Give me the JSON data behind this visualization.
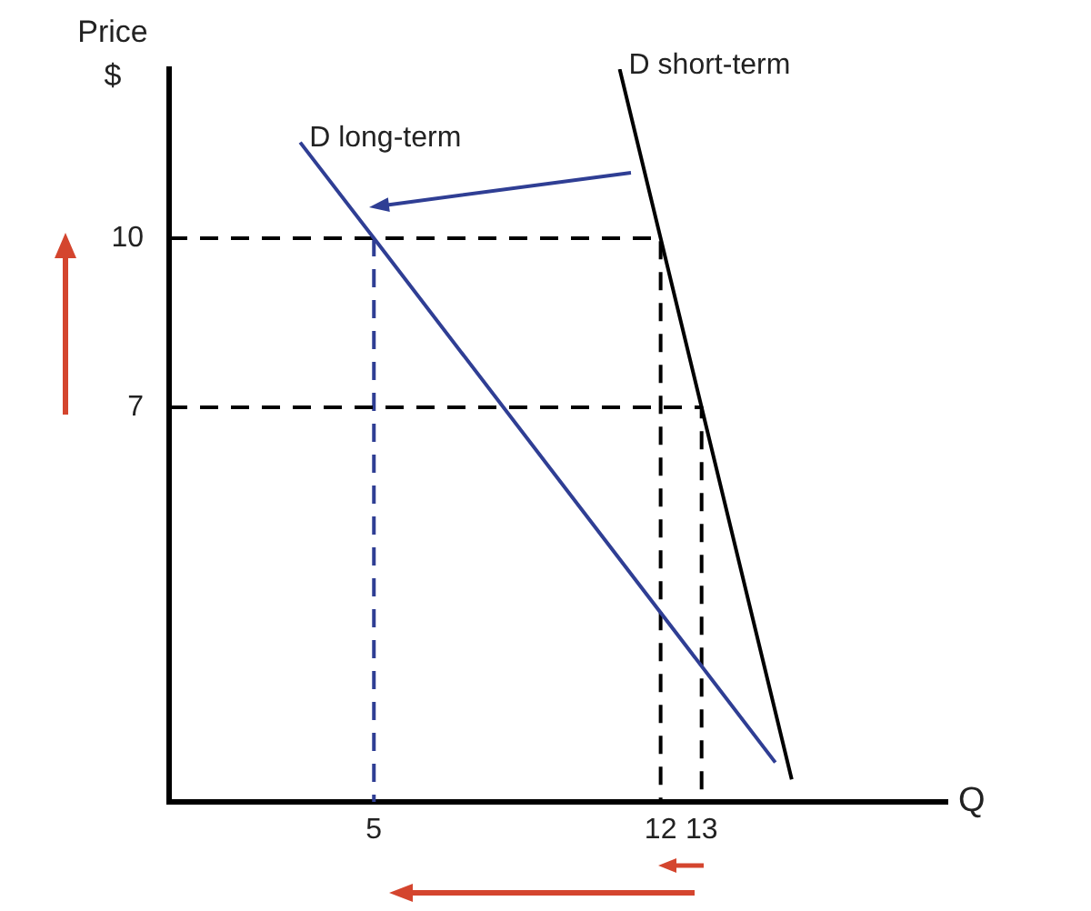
{
  "chart_data": {
    "type": "line",
    "xlabel": "Q",
    "ylabel": "Price $",
    "xlim": [
      0,
      19
    ],
    "ylim": [
      0,
      13
    ],
    "xticks": [
      5,
      12,
      13
    ],
    "yticks": [
      7,
      10
    ],
    "grid": false,
    "legend": false,
    "marker": "none",
    "series": [
      {
        "name": "D long-term",
        "color": "#2f3e94",
        "x": [
          3.2,
          5,
          14.8
        ],
        "values": [
          11.7,
          10,
          0.7
        ],
        "line_style": "solid"
      },
      {
        "name": "D short-term",
        "color": "#000000",
        "x": [
          11,
          12,
          13,
          15.2
        ],
        "values": [
          13,
          10,
          7,
          0.4
        ],
        "line_style": "solid"
      },
      {
        "color": "#000000",
        "x": [
          0,
          12,
          12
        ],
        "values": [
          10,
          10,
          0
        ],
        "line_style": "dashed"
      },
      {
        "color": "#000000",
        "x": [
          0,
          13,
          13
        ],
        "values": [
          7,
          7,
          0
        ],
        "line_style": "dashed"
      },
      {
        "color": "#2f3e94",
        "x": [
          5,
          5
        ],
        "values": [
          10,
          0
        ],
        "line_style": "dashed"
      }
    ]
  }
}
